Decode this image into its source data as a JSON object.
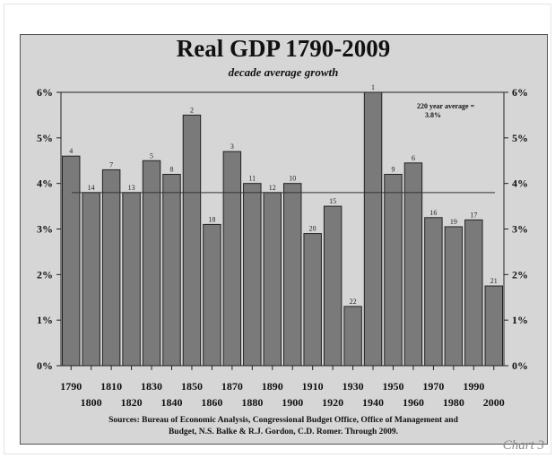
{
  "chart_data": {
    "type": "bar",
    "title": "Real GDP 1790-2009",
    "subtitle": "decade average growth",
    "xlabel": "",
    "ylabel": "",
    "ylim": [
      0,
      6
    ],
    "yticks": [
      "0%",
      "1%",
      "2%",
      "3%",
      "4%",
      "5%",
      "6%"
    ],
    "categories": [
      "1790",
      "1800",
      "1810",
      "1820",
      "1830",
      "1840",
      "1850",
      "1860",
      "1870",
      "1880",
      "1890",
      "1900",
      "1910",
      "1920",
      "1930",
      "1940",
      "1950",
      "1960",
      "1970",
      "1980",
      "1990",
      "2000"
    ],
    "values": [
      4.6,
      3.8,
      4.3,
      3.8,
      4.5,
      4.2,
      5.5,
      3.1,
      4.7,
      4.0,
      3.8,
      4.0,
      2.9,
      3.5,
      1.3,
      6.0,
      4.2,
      4.45,
      3.25,
      3.05,
      3.2,
      1.75
    ],
    "ranks": [
      "4",
      "14",
      "7",
      "13",
      "5",
      "8",
      "2",
      "18",
      "3",
      "11",
      "12",
      "10",
      "20",
      "15",
      "22",
      "1",
      "9",
      "6",
      "16",
      "19",
      "17",
      "21"
    ],
    "average": 3.8,
    "average_label_line1": "220 year average =",
    "average_label_line2": "3.8%",
    "source_line1": "Sources: Bureau of Economic Analysis, Congressional Budget Office, Office of Management and",
    "source_line2": "Budget,  N.S. Balke & R.J. Gordon, C.D. Romer. Through 2009.",
    "bar_color": "#7a7a7a",
    "background_color": "#d6d6d6",
    "grid": false
  },
  "watermark": "Chart 3"
}
